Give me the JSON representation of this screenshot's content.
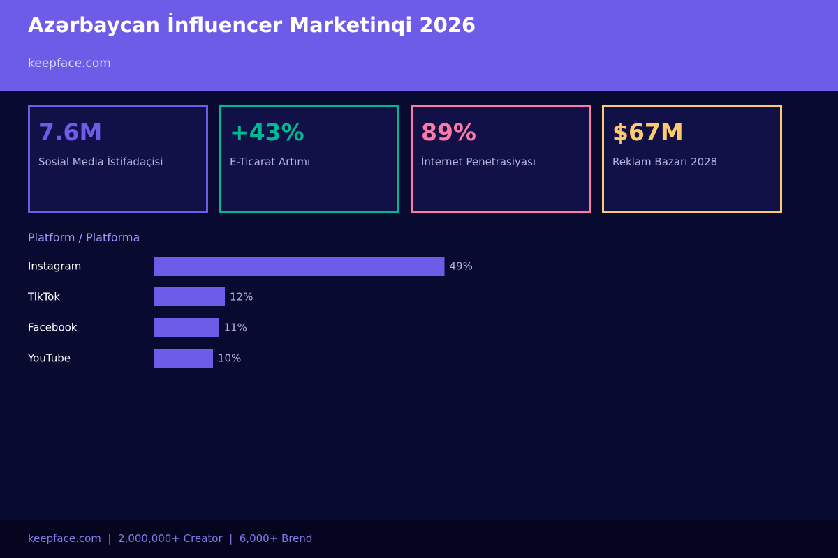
{
  "header": {
    "title": "Azərbaycan İnfluencer Marketinqi 2026",
    "subtitle": "keepface.com"
  },
  "stats": [
    {
      "value": "7.6M",
      "label": "Sosial Media İstifadəçisi",
      "color": "#6c5ce7"
    },
    {
      "value": "+43%",
      "label": "E-Ticarət Artımı",
      "color": "#00b894"
    },
    {
      "value": "89%",
      "label": "İnternet Penetrasiyası",
      "color": "#fd79a8"
    },
    {
      "value": "$67M",
      "label": "Reklam Bazarı 2028",
      "color": "#fdcb6e"
    }
  ],
  "section": {
    "title": "Platform / Platforma"
  },
  "chart_data": {
    "type": "bar",
    "orientation": "horizontal",
    "categories": [
      "Instagram",
      "TikTok",
      "Facebook",
      "YouTube"
    ],
    "values": [
      49,
      12,
      11,
      10
    ],
    "value_labels": [
      "49%",
      "12%",
      "11%",
      "10%"
    ],
    "unit": "%",
    "bar_color": "#6c5ce7",
    "grid": false,
    "legend": "none"
  },
  "footer": {
    "text": "keepface.com  |  2,000,000+ Creator  |  6,000+ Brend"
  }
}
